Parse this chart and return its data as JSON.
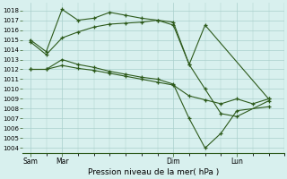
{
  "background_color": "#d8f0ee",
  "grid_color": "#aacfcc",
  "line_color": "#2d5a1b",
  "marker": "+",
  "xlabel": "Pression niveau de la mer( hPa )",
  "ylim": [
    1003.5,
    1018.8
  ],
  "yticks": [
    1004,
    1005,
    1006,
    1007,
    1008,
    1009,
    1010,
    1011,
    1012,
    1013,
    1014,
    1015,
    1016,
    1017,
    1018
  ],
  "xtick_labels": [
    "Sam",
    "Mar",
    "Dim",
    "Lun"
  ],
  "xtick_positions": [
    0,
    2,
    9,
    13
  ],
  "xlim": [
    -0.5,
    16.0
  ],
  "series": [
    {
      "x": [
        0,
        1,
        2,
        3,
        4,
        5,
        6,
        7,
        8,
        9,
        10,
        11,
        15
      ],
      "y": [
        1015.0,
        1013.8,
        1018.1,
        1017.0,
        1017.2,
        1017.8,
        1017.5,
        1017.2,
        1017.0,
        1016.5,
        1012.5,
        1016.5,
        1009.0
      ]
    },
    {
      "x": [
        0,
        1,
        2,
        3,
        4,
        5,
        6,
        7,
        8,
        9,
        10,
        11,
        12,
        13,
        15
      ],
      "y": [
        1014.8,
        1013.5,
        1015.2,
        1015.8,
        1016.3,
        1016.6,
        1016.7,
        1016.8,
        1017.0,
        1016.8,
        1012.5,
        1010.0,
        1007.5,
        1007.2,
        1008.8
      ]
    },
    {
      "x": [
        0,
        1,
        2,
        3,
        4,
        5,
        6,
        7,
        8,
        9,
        10,
        11,
        12,
        13,
        15
      ],
      "y": [
        1012.0,
        1012.0,
        1013.0,
        1012.5,
        1012.2,
        1011.8,
        1011.5,
        1011.2,
        1011.0,
        1010.5,
        1007.0,
        1004.0,
        1005.5,
        1007.8,
        1008.2
      ]
    },
    {
      "x": [
        0,
        1,
        2,
        3,
        4,
        5,
        6,
        7,
        8,
        9,
        10,
        11,
        12,
        13,
        14,
        15
      ],
      "y": [
        1012.0,
        1012.0,
        1012.4,
        1012.1,
        1011.9,
        1011.6,
        1011.3,
        1011.0,
        1010.7,
        1010.4,
        1009.3,
        1008.9,
        1008.5,
        1009.0,
        1008.5,
        1009.0
      ]
    }
  ]
}
